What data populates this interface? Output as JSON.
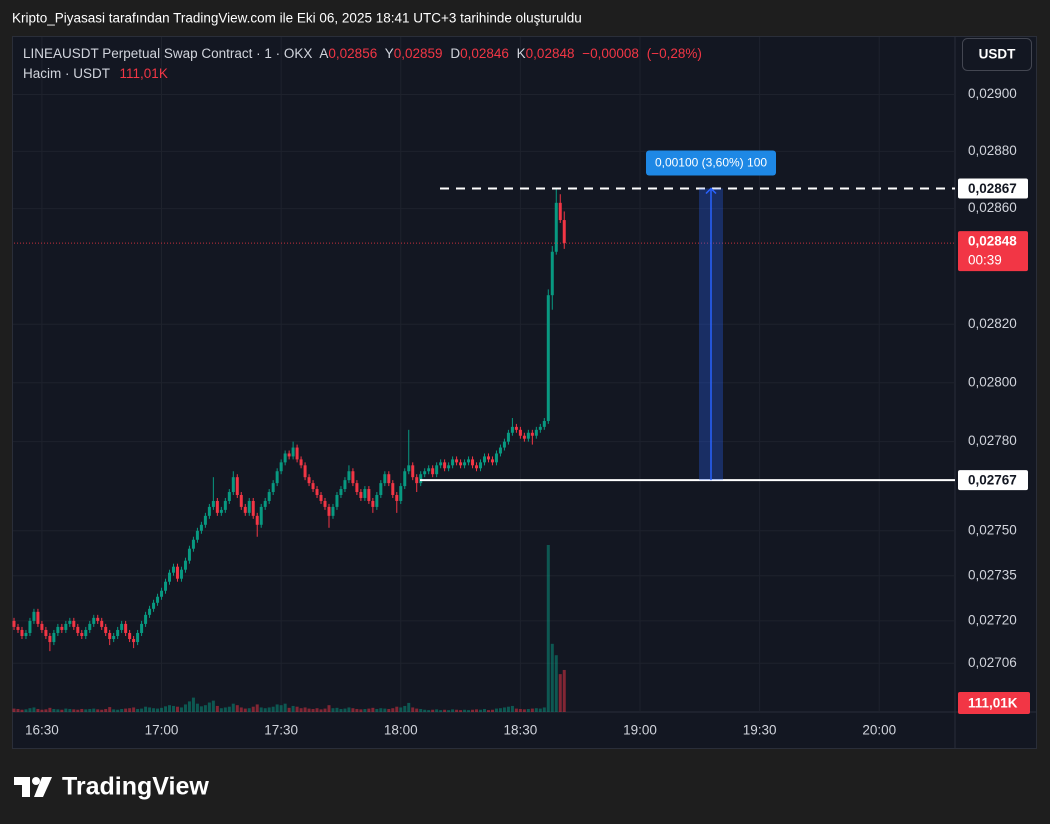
{
  "header": {
    "caption": "Kripto_Piyasasi tarafından TradingView.com ile Eki 06, 2025 18:41 UTC+3 tarihinde oluşturuldu"
  },
  "chart_data": {
    "type": "candlestick",
    "title": "LINEAUSDT Perpetual Swap Contract · 1 · OKX",
    "ohlc_keys": [
      "A",
      "Y",
      "D",
      "K"
    ],
    "ohlc_labels": [
      "0,02856",
      "0,02859",
      "0,02846",
      "0,02848"
    ],
    "change": {
      "value": -8e-05,
      "label": "−0,00008"
    },
    "change_percent": {
      "value": -0.28,
      "label": "(−0,28%)"
    },
    "volume_title": "Hacim · USDT",
    "volume_label": "111,01K",
    "currency": "USDT",
    "up_color": "#089981",
    "down_color": "#f23645",
    "log_scale": true,
    "grid": true,
    "ylim": [
      0.0269,
      0.0292
    ],
    "yticks": [
      {
        "value": 0.02706,
        "label": "0,02706"
      },
      {
        "value": 0.0272,
        "label": "0,02720"
      },
      {
        "value": 0.02735,
        "label": "0,02735"
      },
      {
        "value": 0.0275,
        "label": "0,02750"
      },
      {
        "value": 0.0278,
        "label": "0,02780"
      },
      {
        "value": 0.028,
        "label": "0,02800"
      },
      {
        "value": 0.0282,
        "label": "0,02820"
      },
      {
        "value": 0.0286,
        "label": "0,02860"
      },
      {
        "value": 0.0288,
        "label": "0,02880"
      },
      {
        "value": 0.029,
        "label": "0,02900"
      }
    ],
    "xlim": [
      "16:23",
      "20:19"
    ],
    "xticks": [
      "16:30",
      "17:00",
      "17:30",
      "18:00",
      "18:30",
      "19:00",
      "19:30",
      "20:00"
    ],
    "horizontal_lines": [
      {
        "value": 0.02867,
        "label": "0,02867",
        "style": "dashed"
      },
      {
        "value": 0.02767,
        "label": "0,02767",
        "style": "solid"
      }
    ],
    "last_price_label": "0,02848",
    "countdown": "00:39",
    "measure_label": "0,00100 (3,60%) 100",
    "x": [
      "16:23",
      "16:24",
      "16:25",
      "16:26",
      "16:27",
      "16:28",
      "16:29",
      "16:30",
      "16:31",
      "16:32",
      "16:33",
      "16:34",
      "16:35",
      "16:36",
      "16:37",
      "16:38",
      "16:39",
      "16:40",
      "16:41",
      "16:42",
      "16:43",
      "16:44",
      "16:45",
      "16:46",
      "16:47",
      "16:48",
      "16:49",
      "16:50",
      "16:51",
      "16:52",
      "16:53",
      "16:54",
      "16:55",
      "16:56",
      "16:57",
      "16:58",
      "16:59",
      "17:00",
      "17:01",
      "17:02",
      "17:03",
      "17:04",
      "17:05",
      "17:06",
      "17:07",
      "17:08",
      "17:09",
      "17:10",
      "17:11",
      "17:12",
      "17:13",
      "17:14",
      "17:15",
      "17:16",
      "17:17",
      "17:18",
      "17:19",
      "17:20",
      "17:21",
      "17:22",
      "17:23",
      "17:24",
      "17:25",
      "17:26",
      "17:27",
      "17:28",
      "17:29",
      "17:30",
      "17:31",
      "17:32",
      "17:33",
      "17:34",
      "17:35",
      "17:36",
      "17:37",
      "17:38",
      "17:39",
      "17:40",
      "17:41",
      "17:42",
      "17:43",
      "17:44",
      "17:45",
      "17:46",
      "17:47",
      "17:48",
      "17:49",
      "17:50",
      "17:51",
      "17:52",
      "17:53",
      "17:54",
      "17:55",
      "17:56",
      "17:57",
      "17:58",
      "17:59",
      "18:00",
      "18:01",
      "18:02",
      "18:03",
      "18:04",
      "18:05",
      "18:06",
      "18:07",
      "18:08",
      "18:09",
      "18:10",
      "18:11",
      "18:12",
      "18:13",
      "18:14",
      "18:15",
      "18:16",
      "18:17",
      "18:18",
      "18:19",
      "18:20",
      "18:21",
      "18:22",
      "18:23",
      "18:24",
      "18:25",
      "18:26",
      "18:27",
      "18:28",
      "18:29",
      "18:30",
      "18:31",
      "18:32",
      "18:33",
      "18:34",
      "18:35",
      "18:36",
      "18:37",
      "18:38",
      "18:39",
      "18:40",
      "18:41"
    ],
    "candles": [
      [
        0.0272,
        0.02721,
        0.02717,
        0.02718
      ],
      [
        0.02718,
        0.02719,
        0.02716,
        0.02717
      ],
      [
        0.02717,
        0.02718,
        0.02714,
        0.02715
      ],
      [
        0.02715,
        0.02717,
        0.02714,
        0.02716
      ],
      [
        0.02716,
        0.02721,
        0.02715,
        0.0272
      ],
      [
        0.0272,
        0.02724,
        0.02719,
        0.02723
      ],
      [
        0.02723,
        0.02724,
        0.02718,
        0.02719
      ],
      [
        0.02719,
        0.0272,
        0.02716,
        0.02717
      ],
      [
        0.02717,
        0.02718,
        0.02714,
        0.02715
      ],
      [
        0.02715,
        0.02716,
        0.0271,
        0.02713
      ],
      [
        0.02713,
        0.02717,
        0.02712,
        0.02716
      ],
      [
        0.02716,
        0.02719,
        0.02715,
        0.02718
      ],
      [
        0.02718,
        0.02719,
        0.02716,
        0.02717
      ],
      [
        0.02717,
        0.0272,
        0.02716,
        0.02719
      ],
      [
        0.02719,
        0.02721,
        0.02718,
        0.0272
      ],
      [
        0.0272,
        0.02721,
        0.02717,
        0.02718
      ],
      [
        0.02718,
        0.02719,
        0.02715,
        0.02716
      ],
      [
        0.02716,
        0.02717,
        0.02714,
        0.02715
      ],
      [
        0.02715,
        0.02718,
        0.02714,
        0.02717
      ],
      [
        0.02717,
        0.0272,
        0.02716,
        0.02719
      ],
      [
        0.02719,
        0.02722,
        0.02718,
        0.02721
      ],
      [
        0.02721,
        0.02722,
        0.02719,
        0.0272
      ],
      [
        0.0272,
        0.02721,
        0.02717,
        0.02718
      ],
      [
        0.02718,
        0.02719,
        0.02715,
        0.02716
      ],
      [
        0.02716,
        0.02717,
        0.02712,
        0.02714
      ],
      [
        0.02714,
        0.02716,
        0.02713,
        0.02715
      ],
      [
        0.02715,
        0.02718,
        0.02714,
        0.02717
      ],
      [
        0.02717,
        0.0272,
        0.02716,
        0.02719
      ],
      [
        0.02719,
        0.0272,
        0.02715,
        0.02716
      ],
      [
        0.02716,
        0.02717,
        0.02713,
        0.02714
      ],
      [
        0.02714,
        0.02715,
        0.02711,
        0.02713
      ],
      [
        0.02713,
        0.02717,
        0.02712,
        0.02716
      ],
      [
        0.02716,
        0.0272,
        0.02715,
        0.02719
      ],
      [
        0.02719,
        0.02723,
        0.02718,
        0.02722
      ],
      [
        0.02722,
        0.02725,
        0.02721,
        0.02724
      ],
      [
        0.02724,
        0.02727,
        0.02723,
        0.02726
      ],
      [
        0.02726,
        0.02729,
        0.02725,
        0.02728
      ],
      [
        0.02728,
        0.02731,
        0.02727,
        0.0273
      ],
      [
        0.0273,
        0.02734,
        0.02729,
        0.02733
      ],
      [
        0.02733,
        0.02737,
        0.02732,
        0.02736
      ],
      [
        0.02736,
        0.02739,
        0.02735,
        0.02738
      ],
      [
        0.02738,
        0.02739,
        0.02733,
        0.02734
      ],
      [
        0.02734,
        0.02738,
        0.02733,
        0.02737
      ],
      [
        0.02737,
        0.02741,
        0.02736,
        0.0274
      ],
      [
        0.0274,
        0.02745,
        0.02739,
        0.02744
      ],
      [
        0.02744,
        0.02748,
        0.02743,
        0.02747
      ],
      [
        0.02747,
        0.02751,
        0.02746,
        0.0275
      ],
      [
        0.0275,
        0.02753,
        0.02749,
        0.02752
      ],
      [
        0.02752,
        0.02756,
        0.02751,
        0.02755
      ],
      [
        0.02755,
        0.02759,
        0.02754,
        0.02758
      ],
      [
        0.02758,
        0.02768,
        0.02757,
        0.0276
      ],
      [
        0.0276,
        0.02761,
        0.02755,
        0.02756
      ],
      [
        0.02756,
        0.02758,
        0.02755,
        0.02757
      ],
      [
        0.02757,
        0.02761,
        0.02756,
        0.0276
      ],
      [
        0.0276,
        0.02764,
        0.02759,
        0.02763
      ],
      [
        0.02763,
        0.0277,
        0.02762,
        0.02768
      ],
      [
        0.02768,
        0.02769,
        0.02761,
        0.02762
      ],
      [
        0.02762,
        0.02763,
        0.02757,
        0.02758
      ],
      [
        0.02758,
        0.02759,
        0.02755,
        0.02756
      ],
      [
        0.02756,
        0.02761,
        0.02755,
        0.0276
      ],
      [
        0.0276,
        0.02761,
        0.02754,
        0.02755
      ],
      [
        0.02755,
        0.02756,
        0.02748,
        0.02752
      ],
      [
        0.02752,
        0.02759,
        0.02751,
        0.02758
      ],
      [
        0.02758,
        0.02761,
        0.02757,
        0.0276
      ],
      [
        0.0276,
        0.02764,
        0.02759,
        0.02763
      ],
      [
        0.02763,
        0.02767,
        0.02762,
        0.02766
      ],
      [
        0.02766,
        0.02771,
        0.02765,
        0.0277
      ],
      [
        0.0277,
        0.02774,
        0.02769,
        0.02773
      ],
      [
        0.02773,
        0.02777,
        0.02772,
        0.02776
      ],
      [
        0.02776,
        0.02777,
        0.02774,
        0.02775
      ],
      [
        0.02775,
        0.0278,
        0.02774,
        0.02778
      ],
      [
        0.02778,
        0.02779,
        0.02773,
        0.02774
      ],
      [
        0.02774,
        0.02775,
        0.02771,
        0.02772
      ],
      [
        0.02772,
        0.02773,
        0.02767,
        0.02768
      ],
      [
        0.02768,
        0.02769,
        0.02765,
        0.02766
      ],
      [
        0.02766,
        0.02767,
        0.02763,
        0.02764
      ],
      [
        0.02764,
        0.02765,
        0.02761,
        0.02762
      ],
      [
        0.02762,
        0.02763,
        0.02759,
        0.0276
      ],
      [
        0.0276,
        0.02761,
        0.02757,
        0.02758
      ],
      [
        0.02758,
        0.02759,
        0.02751,
        0.02755
      ],
      [
        0.02755,
        0.02759,
        0.02754,
        0.02758
      ],
      [
        0.02758,
        0.02763,
        0.02757,
        0.02762
      ],
      [
        0.02762,
        0.02765,
        0.02761,
        0.02764
      ],
      [
        0.02764,
        0.02768,
        0.02763,
        0.02767
      ],
      [
        0.02767,
        0.02772,
        0.02766,
        0.0277
      ],
      [
        0.0277,
        0.02771,
        0.02765,
        0.02766
      ],
      [
        0.02766,
        0.02767,
        0.02762,
        0.02763
      ],
      [
        0.02763,
        0.02764,
        0.0276,
        0.02761
      ],
      [
        0.02761,
        0.02765,
        0.0276,
        0.02764
      ],
      [
        0.02764,
        0.02765,
        0.02759,
        0.0276
      ],
      [
        0.0276,
        0.02761,
        0.02756,
        0.02758
      ],
      [
        0.02758,
        0.02763,
        0.02757,
        0.02762
      ],
      [
        0.02762,
        0.02767,
        0.02761,
        0.02766
      ],
      [
        0.02766,
        0.0277,
        0.02765,
        0.02769
      ],
      [
        0.02769,
        0.0277,
        0.02765,
        0.02766
      ],
      [
        0.02766,
        0.02767,
        0.02761,
        0.02762
      ],
      [
        0.02762,
        0.02763,
        0.02756,
        0.0276
      ],
      [
        0.0276,
        0.02766,
        0.02759,
        0.02765
      ],
      [
        0.02765,
        0.02771,
        0.02764,
        0.0277
      ],
      [
        0.0277,
        0.02784,
        0.02769,
        0.02772
      ],
      [
        0.02772,
        0.02773,
        0.02767,
        0.02768
      ],
      [
        0.02768,
        0.02769,
        0.02763,
        0.02766
      ],
      [
        0.02766,
        0.0277,
        0.02765,
        0.02769
      ],
      [
        0.02769,
        0.02771,
        0.02768,
        0.0277
      ],
      [
        0.0277,
        0.02772,
        0.02769,
        0.02771
      ],
      [
        0.02771,
        0.02772,
        0.02768,
        0.02769
      ],
      [
        0.02769,
        0.02773,
        0.02768,
        0.02772
      ],
      [
        0.02772,
        0.02774,
        0.02771,
        0.02773
      ],
      [
        0.02773,
        0.02774,
        0.0277,
        0.02771
      ],
      [
        0.02771,
        0.02773,
        0.0277,
        0.02772
      ],
      [
        0.02772,
        0.02775,
        0.02771,
        0.02774
      ],
      [
        0.02774,
        0.02775,
        0.02772,
        0.02773
      ],
      [
        0.02773,
        0.02774,
        0.02771,
        0.02772
      ],
      [
        0.02772,
        0.02774,
        0.02771,
        0.02773
      ],
      [
        0.02773,
        0.02775,
        0.02772,
        0.02774
      ],
      [
        0.02774,
        0.02775,
        0.02771,
        0.02772
      ],
      [
        0.02772,
        0.02773,
        0.0277,
        0.02771
      ],
      [
        0.02771,
        0.02774,
        0.0277,
        0.02773
      ],
      [
        0.02773,
        0.02776,
        0.02772,
        0.02775
      ],
      [
        0.02775,
        0.02776,
        0.02773,
        0.02774
      ],
      [
        0.02774,
        0.02775,
        0.02772,
        0.02773
      ],
      [
        0.02773,
        0.02777,
        0.02772,
        0.02776
      ],
      [
        0.02776,
        0.02779,
        0.02775,
        0.02778
      ],
      [
        0.02778,
        0.02781,
        0.02777,
        0.0278
      ],
      [
        0.0278,
        0.02784,
        0.02779,
        0.02783
      ],
      [
        0.02783,
        0.02788,
        0.02782,
        0.02785
      ],
      [
        0.02785,
        0.02786,
        0.02783,
        0.02784
      ],
      [
        0.02784,
        0.02785,
        0.02781,
        0.02782
      ],
      [
        0.02782,
        0.02783,
        0.0278,
        0.02781
      ],
      [
        0.02781,
        0.02784,
        0.0278,
        0.02783
      ],
      [
        0.02783,
        0.02784,
        0.02779,
        0.02782
      ],
      [
        0.02782,
        0.02785,
        0.02781,
        0.02784
      ],
      [
        0.02784,
        0.02786,
        0.02783,
        0.02785
      ],
      [
        0.02785,
        0.02788,
        0.02784,
        0.02787
      ],
      [
        0.02787,
        0.02832,
        0.02786,
        0.0283
      ],
      [
        0.0283,
        0.02847,
        0.02825,
        0.02845
      ],
      [
        0.02845,
        0.02867,
        0.02844,
        0.02862
      ],
      [
        0.02862,
        0.02865,
        0.02855,
        0.02856
      ],
      [
        0.02856,
        0.02859,
        0.02846,
        0.02848
      ]
    ],
    "volumes": [
      9000,
      8000,
      6000,
      7000,
      10000,
      12000,
      8000,
      6000,
      7000,
      11000,
      8000,
      7000,
      6000,
      9000,
      8000,
      7000,
      6000,
      8000,
      7000,
      8000,
      9000,
      7000,
      6000,
      8000,
      13000,
      7000,
      6000,
      8000,
      9000,
      10000,
      12000,
      8000,
      9000,
      14000,
      12000,
      10000,
      9000,
      11000,
      15000,
      18000,
      16000,
      14000,
      12000,
      20000,
      28000,
      38000,
      22000,
      15000,
      18000,
      25000,
      30000,
      16000,
      10000,
      12000,
      14000,
      22000,
      18000,
      12000,
      9000,
      10000,
      14000,
      20000,
      12000,
      10000,
      12000,
      14000,
      20000,
      18000,
      22000,
      11000,
      16000,
      14000,
      10000,
      12000,
      9000,
      8000,
      10000,
      7000,
      9000,
      18000,
      10000,
      11000,
      8000,
      9000,
      12000,
      10000,
      8000,
      7000,
      8000,
      9000,
      11000,
      8000,
      10000,
      9000,
      8000,
      10000,
      14000,
      12000,
      16000,
      24000,
      12000,
      9000,
      8000,
      6000,
      5000,
      6000,
      7000,
      5000,
      6000,
      5000,
      7000,
      6000,
      5000,
      6000,
      5000,
      6000,
      7000,
      6000,
      8000,
      5000,
      6000,
      9000,
      10000,
      12000,
      14000,
      16000,
      9000,
      8000,
      7000,
      8000,
      9000,
      10000,
      9000,
      12000,
      441000,
      180000,
      150000,
      100000,
      111010
    ]
  },
  "branding": "TradingView"
}
